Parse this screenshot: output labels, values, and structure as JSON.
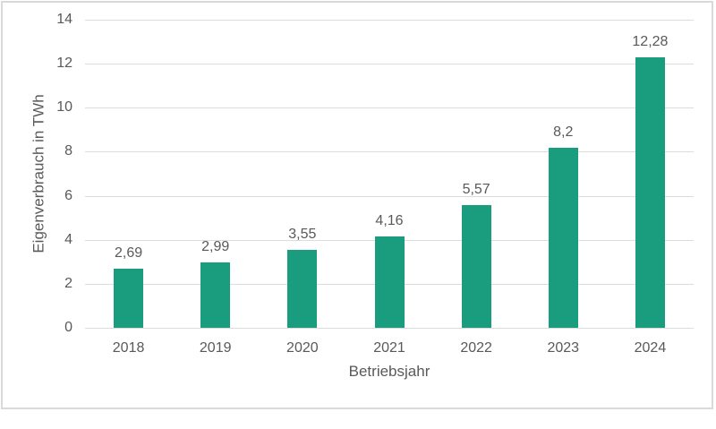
{
  "colors": {
    "bar": "#1a9d7e",
    "grid": "#dcdcdc",
    "frame_border": "#d9d9d9",
    "text": "#595959",
    "background": "#ffffff"
  },
  "chart_data": {
    "type": "bar",
    "title": "",
    "categories": [
      "2018",
      "2019",
      "2020",
      "2021",
      "2022",
      "2023",
      "2024"
    ],
    "values": [
      2.69,
      2.99,
      3.55,
      4.16,
      5.57,
      8.2,
      12.28
    ],
    "value_labels": [
      "2,69",
      "2,99",
      "3,55",
      "4,16",
      "5,57",
      "8,2",
      "12,28"
    ],
    "xlabel": "Betriebsjahr",
    "ylabel": "Eigenverbrauch in TWh",
    "ylim": [
      0,
      14
    ],
    "yticks": [
      0,
      2,
      4,
      6,
      8,
      10,
      12,
      14
    ],
    "grid": "horizontal",
    "legend": "none",
    "decimal_separator": ","
  }
}
